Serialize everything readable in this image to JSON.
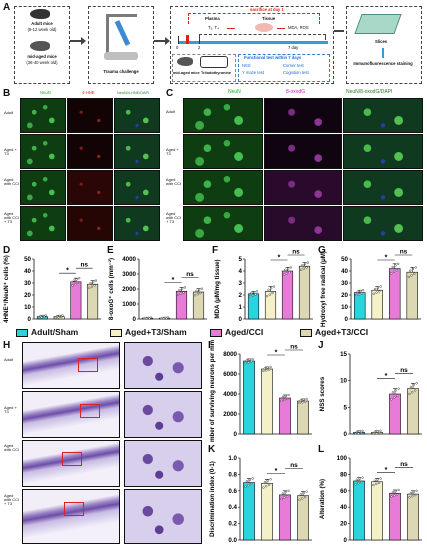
{
  "panel_letters": {
    "A": "A",
    "B": "B",
    "C": "C",
    "D": "D",
    "E": "E",
    "F": "F",
    "G": "G",
    "H": "H",
    "I": "I",
    "J": "J",
    "K": "K",
    "L": "L"
  },
  "schematic": {
    "adult_mice": "Adult mice",
    "adult_age": "(9-12 week old)",
    "mid_aged_mice": "mid-aged mice",
    "mid_aged_age": "(36-40 week old)",
    "trauma": "Trauma challenge",
    "sacrifice": "sacrifice at day 1",
    "plasma": "Plasma",
    "t3t4": "T₃, T₄",
    "tissue": "Tissue",
    "mda_ros": "MDA, ROS",
    "day0": "0",
    "day2": "2",
    "day7": "7 day",
    "mid_aged_mice2": "mid-aged mice",
    "triiodothyronine": "Triiodothyronine",
    "functional_title": "Functional test within 7 days",
    "nss": "NSS",
    "corner": "Corner test",
    "ymaze": "Y maze test",
    "cognition": "Cognition test",
    "slices": "Slices",
    "immuno": "Immunofluorescence staining"
  },
  "panel_B": {
    "columns": [
      "NeuN",
      "4-HNE",
      "NeuN/4-HNE/DAPI"
    ],
    "rows": [
      "Adult",
      "Aged + T3",
      "Aged with CCI",
      "Aged with CCI + T3"
    ]
  },
  "panel_C": {
    "columns": [
      "NeuN",
      "8-oxodG",
      "NeuN/8-oxodG/DAPI"
    ],
    "rows": [
      "Adult",
      "Aged + T3",
      "Aged with CCI",
      "Aged with CCI + T3"
    ]
  },
  "panel_H": {
    "rows": [
      "Adult",
      "Aged + T3",
      "Aged with CCI",
      "Aged with CCI + T3"
    ]
  },
  "legend": {
    "items": [
      {
        "label": "Adult/Sham",
        "color": "#2ad4dc"
      },
      {
        "label": "Aged+T3/Sham",
        "color": "#f4f0c8"
      },
      {
        "label": "Aged/CCI",
        "color": "#e87ad8"
      },
      {
        "label": "Aged+T3/CCI",
        "color": "#dcd8b4"
      }
    ]
  },
  "sig": {
    "ns": "ns",
    "star": "*"
  },
  "chart_data": [
    {
      "panel": "D",
      "type": "bar",
      "ylabel": "4HNE⁺/NeuN⁺ cells (%)",
      "ylim": [
        0,
        50
      ],
      "yticks": [
        "0",
        "10",
        "20",
        "30",
        "40",
        "50"
      ],
      "categories": [
        "Adult/Sham",
        "Aged+T3/Sham",
        "Aged/CCI",
        "Aged+T3/CCI"
      ],
      "values": [
        2,
        2,
        31,
        29
      ],
      "errors": [
        1,
        1,
        3,
        3
      ]
    },
    {
      "panel": "E",
      "type": "bar",
      "ylabel": "8-oxoG⁺ cells (mm⁻²)",
      "ylim": [
        0,
        4000
      ],
      "yticks": [
        "0",
        "1000",
        "2000",
        "3000",
        "4000"
      ],
      "categories": [
        "Adult/Sham",
        "Aged+T3/Sham",
        "Aged/CCI",
        "Aged+T3/CCI"
      ],
      "values": [
        60,
        60,
        1850,
        1800
      ],
      "errors": [
        40,
        40,
        250,
        220
      ]
    },
    {
      "panel": "F",
      "type": "bar",
      "ylabel": "MDA (μM/mg tissue)",
      "ylim": [
        0,
        5
      ],
      "yticks": [
        "0",
        "1",
        "2",
        "3",
        "4",
        "5"
      ],
      "categories": [
        "Adult/Sham",
        "Aged+T3/Sham",
        "Aged/CCI",
        "Aged+T3/CCI"
      ],
      "values": [
        2.1,
        2.3,
        4.0,
        4.4
      ],
      "errors": [
        0.2,
        0.4,
        0.3,
        0.3
      ]
    },
    {
      "panel": "G",
      "type": "bar",
      "ylabel": "Hydroxyl free radical (μM)",
      "ylim": [
        0,
        50
      ],
      "yticks": [
        "0",
        "10",
        "20",
        "30",
        "40",
        "50"
      ],
      "categories": [
        "Adult/Sham",
        "Aged+T3/Sham",
        "Aged/CCI",
        "Aged+T3/CCI"
      ],
      "values": [
        22,
        24,
        42,
        39
      ],
      "errors": [
        2,
        3,
        4,
        4
      ]
    },
    {
      "panel": "I",
      "type": "bar",
      "ylabel": "Number of surviving neurons per mm²",
      "ylim": [
        0,
        8000
      ],
      "yticks": [
        "0",
        "2000",
        "4000",
        "6000",
        "8000"
      ],
      "categories": [
        "Adult/Sham",
        "Aged+T3/Sham",
        "Aged/CCI",
        "Aged+T3/CCI"
      ],
      "values": [
        7300,
        6500,
        3600,
        3300
      ],
      "errors": [
        200,
        200,
        300,
        200
      ]
    },
    {
      "panel": "J",
      "type": "bar",
      "ylabel": "NSS scores",
      "ylim": [
        0,
        15
      ],
      "yticks": [
        "0",
        "5",
        "10",
        "15"
      ],
      "categories": [
        "Adult/Sham",
        "Aged+T3/Sham",
        "Aged/CCI",
        "Aged+T3/CCI"
      ],
      "values": [
        0.3,
        0.3,
        7.5,
        8.5
      ],
      "errors": [
        0.3,
        0.3,
        1,
        1
      ]
    },
    {
      "panel": "K",
      "type": "bar",
      "ylabel": "Discrimination index (0-1)",
      "ylim": [
        0,
        1.0
      ],
      "yticks": [
        "0.0",
        "0.2",
        "0.4",
        "0.6",
        "0.8",
        "1.0"
      ],
      "categories": [
        "Adult/Sham",
        "Aged+T3/Sham",
        "Aged/CCI",
        "Aged+T3/CCI"
      ],
      "values": [
        0.7,
        0.69,
        0.55,
        0.54
      ],
      "errors": [
        0.05,
        0.05,
        0.05,
        0.05
      ]
    },
    {
      "panel": "L",
      "type": "bar",
      "ylabel": "Alteration (%)",
      "ylim": [
        0,
        100
      ],
      "yticks": [
        "0",
        "20",
        "40",
        "60",
        "80",
        "100"
      ],
      "categories": [
        "Adult/Sham",
        "Aged+T3/Sham",
        "Aged/CCI",
        "Aged+T3/CCI"
      ],
      "values": [
        72,
        71,
        57,
        56
      ],
      "errors": [
        4,
        4,
        4,
        4
      ]
    }
  ]
}
